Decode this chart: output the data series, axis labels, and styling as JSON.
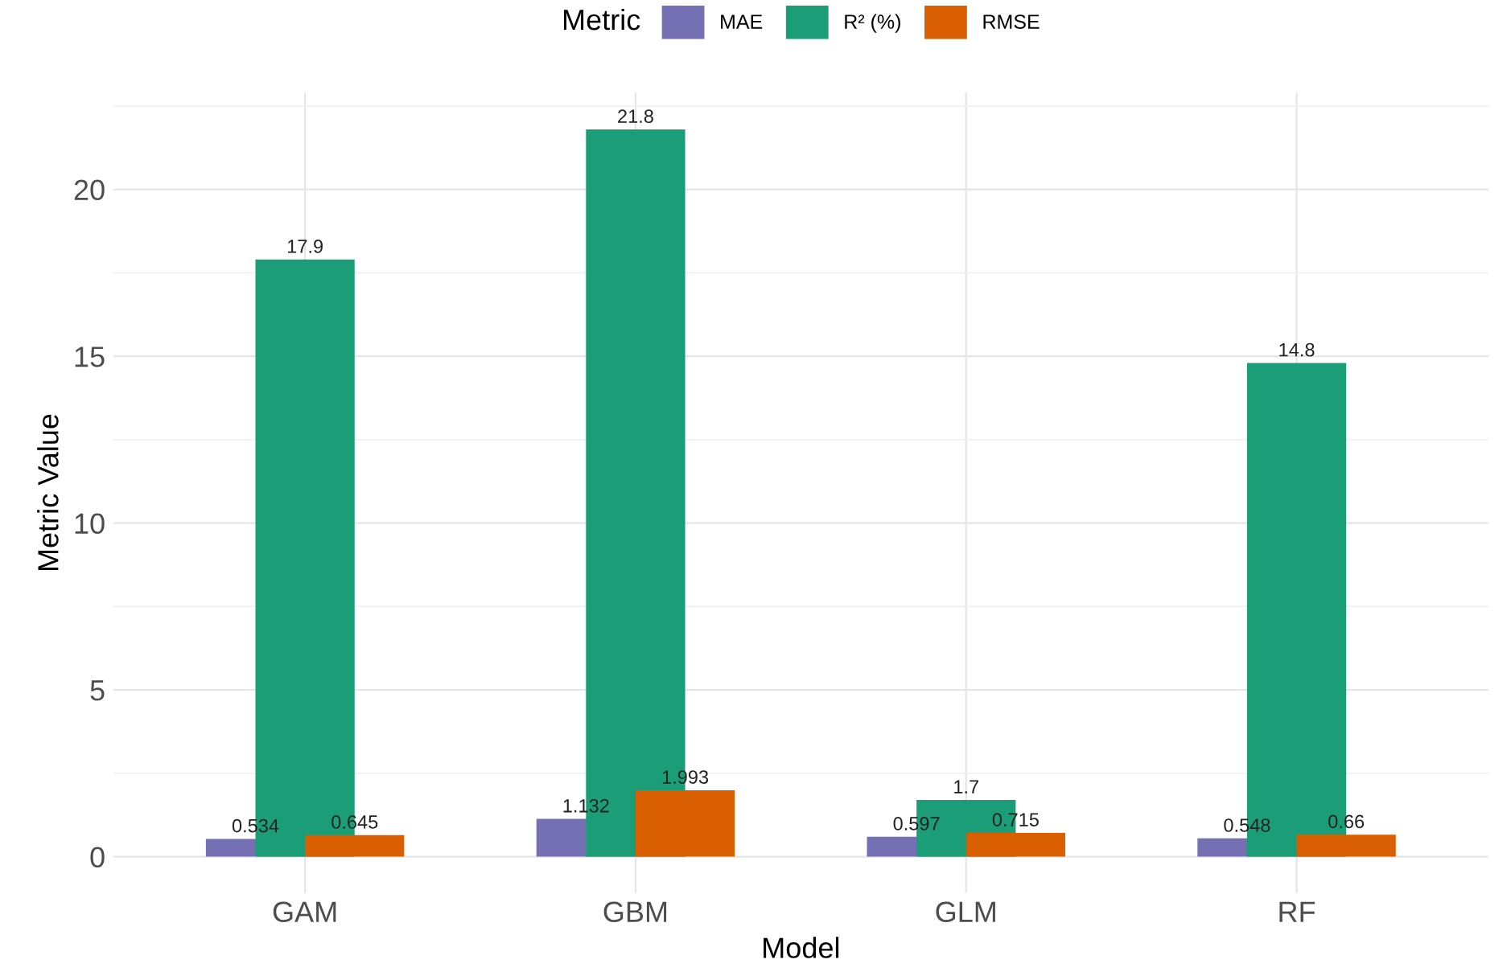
{
  "chart_data": {
    "type": "bar",
    "xlabel": "Model",
    "ylabel": "Metric Value",
    "legend_title": "Metric",
    "categories": [
      "GAM",
      "GBM",
      "GLM",
      "RF"
    ],
    "series": [
      {
        "name": "MAE",
        "color": "#7570b3",
        "values": [
          0.534,
          1.132,
          0.597,
          0.548
        ]
      },
      {
        "name": "R² (%)",
        "color": "#1b9e77",
        "values": [
          17.9,
          21.8,
          1.7,
          14.8
        ]
      },
      {
        "name": "RMSE",
        "color": "#d95f02",
        "values": [
          0.645,
          1.993,
          0.715,
          0.66
        ]
      }
    ],
    "ylim": [
      -1.09,
      22.9
    ],
    "yticks": [
      0,
      5,
      10,
      15,
      20
    ],
    "grid": true,
    "legend": "top",
    "data_labels": true
  }
}
